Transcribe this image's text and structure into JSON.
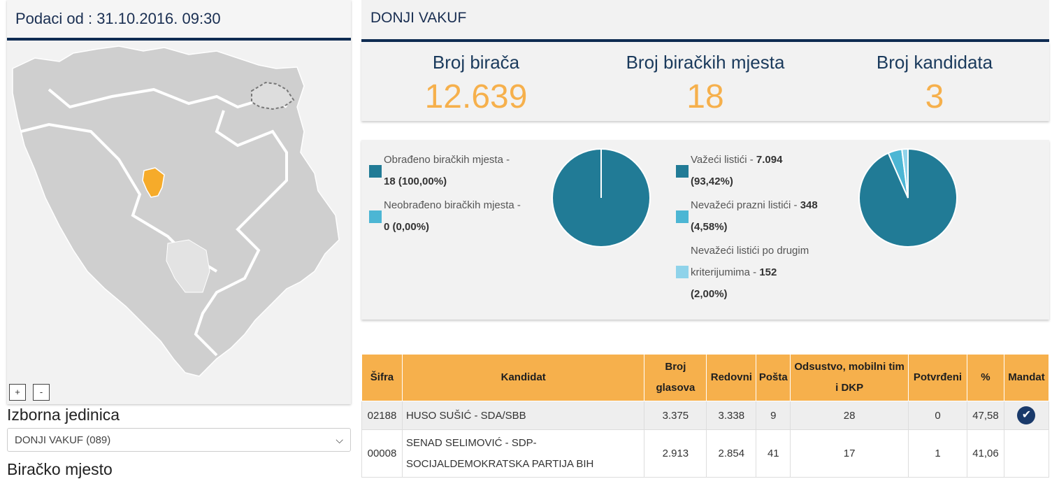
{
  "left": {
    "header": "Podaci od : 31.10.2016. 09:30",
    "zoom_in": "+",
    "zoom_out": "-",
    "izborna_label": "Izborna jedinica",
    "select_value": "DONJI VAKUF (089)",
    "birako_label": "Biračko mjesto"
  },
  "right": {
    "title": "DONJI VAKUF",
    "stats": [
      {
        "label": "Broj birača",
        "value": "12.639"
      },
      {
        "label": "Broj biračkih mjesta",
        "value": "18"
      },
      {
        "label": "Broj kandidata",
        "value": "3"
      }
    ],
    "pie1": {
      "items": [
        {
          "text": "Obrađeno biračkih mjesta -",
          "bold": "18 (100,00%)",
          "color": "#217b96"
        },
        {
          "text": "Neobrađeno biračkih mjesta -",
          "bold": "0 (0,00%)",
          "color": "#4cb6d4"
        }
      ]
    },
    "pie2": {
      "items": [
        {
          "text": "Važeći listići -",
          "bold1": "7.094",
          "bold2": "(93,42%)",
          "color": "#217b96"
        },
        {
          "text": "Nevažeći prazni listići -",
          "bold1": "348",
          "bold2": "(4,58%)",
          "color": "#4cb6d4"
        },
        {
          "text1": "Nevažeći listići po drugim",
          "text2": "kriterijumima -",
          "bold1": "152",
          "bold2": "(2,00%)",
          "color": "#8fd3ea"
        }
      ]
    }
  },
  "chart_data": [
    {
      "type": "pie",
      "labels": [
        "Obrađeno biračkih mjesta",
        "Neobrađeno biračkih mjesta"
      ],
      "values": [
        18,
        0
      ],
      "percent": [
        100.0,
        0.0
      ],
      "colors": [
        "#217b96",
        "#4cb6d4"
      ]
    },
    {
      "type": "pie",
      "labels": [
        "Važeći listići",
        "Nevažeći prazni listići",
        "Nevažeći listići po drugim kriterijumima"
      ],
      "values": [
        7094,
        348,
        152
      ],
      "percent": [
        93.42,
        4.58,
        2.0
      ],
      "colors": [
        "#217b96",
        "#4cb6d4",
        "#8fd3ea"
      ]
    }
  ],
  "table": {
    "headers": [
      "Šifra",
      "Kandidat",
      "Broj glasova",
      "Redovni",
      "Pošta",
      "Odsustvo, mobilni tim i DKP",
      "Potvrđeni",
      "%",
      "Mandat"
    ],
    "rows": [
      {
        "sifra": "02188",
        "kandidat": "HUSO SUŠIĆ - SDA/SBB",
        "glasova": "3.375",
        "redovni": "3.338",
        "posta": "9",
        "odsustvo": "28",
        "potvrdjeni": "0",
        "pct": "47,58",
        "mandat": "✔"
      },
      {
        "sifra": "00008",
        "kandidat1": "SENAD SELIMOVIĆ - SDP-",
        "kandidat2": "SOCIJALDEMOKRATSKA PARTIJA BIH",
        "glasova": "2.913",
        "redovni": "2.854",
        "posta": "41",
        "odsustvo": "17",
        "potvrdjeni": "1",
        "pct": "41,06"
      }
    ]
  }
}
